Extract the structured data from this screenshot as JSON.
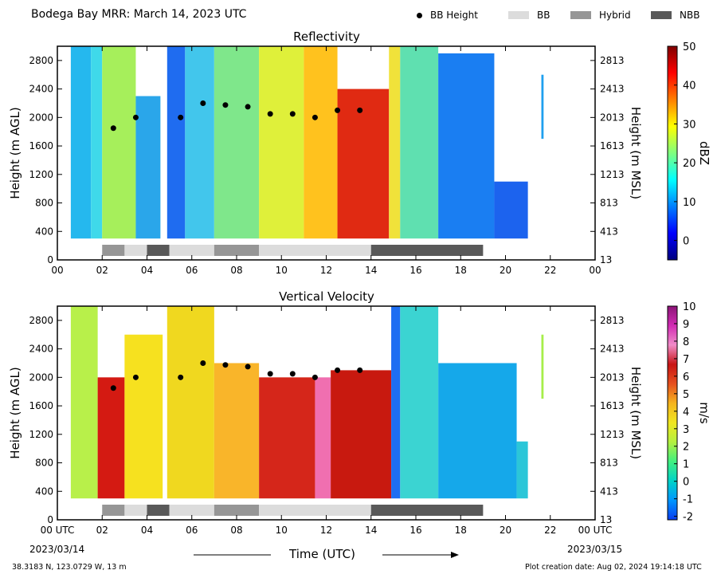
{
  "header": {
    "title": "Bodega Bay MRR:  March 14, 2023 UTC",
    "legend": [
      {
        "name": "BB Height",
        "kind": "dot",
        "color": "#000000"
      },
      {
        "name": "BB",
        "kind": "swatch",
        "color": "#dcdcdc"
      },
      {
        "name": "Hybrid",
        "kind": "swatch",
        "color": "#969696"
      },
      {
        "name": "NBB",
        "kind": "swatch",
        "color": "#595959"
      }
    ]
  },
  "x_axis": {
    "ticks": [
      "00",
      "02",
      "04",
      "06",
      "08",
      "10",
      "12",
      "14",
      "16",
      "18",
      "20",
      "22",
      "00"
    ],
    "bottom_ticks": [
      "00 UTC",
      "02",
      "04",
      "06",
      "08",
      "10",
      "12",
      "14",
      "16",
      "18",
      "20",
      "22",
      "00 UTC"
    ],
    "start_date": "2023/03/14",
    "end_date": "2023/03/15",
    "label": "Time (UTC)"
  },
  "footer": {
    "location": "38.3183 N, 123.0729 W, 13 m",
    "created": "Plot creation date: Aug 02, 2024 19:14:18 UTC"
  },
  "chart_data": [
    {
      "type": "heatmap",
      "title": "Reflectivity",
      "xlabel": "Time (UTC)",
      "ylabel": "Height (m AGL)",
      "y2label": "Height (m MSL)",
      "xlim": [
        0,
        24
      ],
      "ylim": [
        0,
        3000
      ],
      "yticks": [
        0,
        400,
        800,
        1200,
        1600,
        2000,
        2400,
        2800
      ],
      "y2ticks": [
        13,
        413,
        813,
        1213,
        1613,
        2013,
        2413,
        2813
      ],
      "colorbar": {
        "label": "dBZ",
        "min": -5,
        "max": 50,
        "ticks": [
          0,
          10,
          20,
          30,
          40,
          50
        ]
      }
    },
    {
      "type": "heatmap",
      "title": "Vertical Velocity",
      "xlabel": "Time (UTC)",
      "ylabel": "Height (m AGL)",
      "y2label": "Height (m MSL)",
      "xlim": [
        0,
        24
      ],
      "ylim": [
        0,
        3000
      ],
      "yticks": [
        0,
        400,
        800,
        1200,
        1600,
        2000,
        2400,
        2800
      ],
      "y2ticks": [
        13,
        413,
        813,
        1213,
        1613,
        2013,
        2413,
        2813
      ],
      "colorbar": {
        "label": "m/s",
        "min": -2.2,
        "max": 10,
        "ticks": [
          -2,
          -1,
          0,
          1,
          2,
          3,
          4,
          5,
          6,
          7,
          8,
          9,
          10
        ]
      }
    }
  ],
  "bb_heights": [
    {
      "x": 2.5,
      "y": 1850
    },
    {
      "x": 3.5,
      "y": 2000
    },
    {
      "x": 5.5,
      "y": 2000
    },
    {
      "x": 6.5,
      "y": 2200
    },
    {
      "x": 7.5,
      "y": 2175
    },
    {
      "x": 8.5,
      "y": 2150
    },
    {
      "x": 9.5,
      "y": 2050
    },
    {
      "x": 10.5,
      "y": 2050
    },
    {
      "x": 11.5,
      "y": 2000
    },
    {
      "x": 12.5,
      "y": 2100
    },
    {
      "x": 13.5,
      "y": 2100
    }
  ],
  "bb_classes": [
    {
      "start": 2,
      "end": 3,
      "class": "Hybrid"
    },
    {
      "start": 3,
      "end": 4,
      "class": "BB"
    },
    {
      "start": 4,
      "end": 5,
      "class": "NBB"
    },
    {
      "start": 5,
      "end": 7,
      "class": "BB"
    },
    {
      "start": 7,
      "end": 9,
      "class": "Hybrid"
    },
    {
      "start": 9,
      "end": 14,
      "class": "BB"
    },
    {
      "start": 14,
      "end": 19,
      "class": "NBB"
    }
  ],
  "echo_columns": {
    "reflectivity": [
      {
        "start": 0.6,
        "end": 1.5,
        "top": 3000,
        "bottom": 300,
        "color": "#25b8ee"
      },
      {
        "start": 1.5,
        "end": 2.0,
        "top": 3000,
        "bottom": 300,
        "color": "#3fd9ea"
      },
      {
        "start": 2.0,
        "end": 3.5,
        "top": 3000,
        "bottom": 300,
        "color": "#a6ef5b"
      },
      {
        "start": 3.5,
        "end": 4.6,
        "top": 2300,
        "bottom": 300,
        "color": "#2aa6ea"
      },
      {
        "start": 4.9,
        "end": 5.7,
        "top": 3000,
        "bottom": 300,
        "color": "#1f6cf0"
      },
      {
        "start": 5.7,
        "end": 7.0,
        "top": 3000,
        "bottom": 300,
        "color": "#42c6ec"
      },
      {
        "start": 7.0,
        "end": 9.0,
        "top": 3000,
        "bottom": 300,
        "color": "#7fe78b"
      },
      {
        "start": 9.0,
        "end": 11.0,
        "top": 3000,
        "bottom": 300,
        "color": "#dff03a"
      },
      {
        "start": 11.0,
        "end": 12.5,
        "top": 3000,
        "bottom": 300,
        "color": "#ffc21e"
      },
      {
        "start": 12.5,
        "end": 14.8,
        "top": 2400,
        "bottom": 300,
        "color": "#e02a12"
      },
      {
        "start": 14.8,
        "end": 15.3,
        "top": 3000,
        "bottom": 300,
        "color": "#f0e23a"
      },
      {
        "start": 15.3,
        "end": 17.0,
        "top": 3000,
        "bottom": 300,
        "color": "#5fe0b0"
      },
      {
        "start": 17.0,
        "end": 19.5,
        "top": 2900,
        "bottom": 300,
        "color": "#1a7ef2"
      },
      {
        "start": 19.5,
        "end": 21.0,
        "top": 1100,
        "bottom": 300,
        "color": "#1c63ee"
      },
      {
        "start": 21.6,
        "end": 21.7,
        "top": 2600,
        "bottom": 1700,
        "color": "#1fa0ef"
      }
    ],
    "velocity": [
      {
        "start": 0.6,
        "end": 1.8,
        "top": 3000,
        "bottom": 300,
        "color": "#b8f04a"
      },
      {
        "start": 1.8,
        "end": 3.0,
        "top": 2000,
        "bottom": 300,
        "color": "#d41a12"
      },
      {
        "start": 3.0,
        "end": 4.7,
        "top": 2600,
        "bottom": 300,
        "color": "#f6e11f"
      },
      {
        "start": 4.9,
        "end": 7.0,
        "top": 3000,
        "bottom": 300,
        "color": "#f0d81f"
      },
      {
        "start": 7.0,
        "end": 9.0,
        "top": 2200,
        "bottom": 300,
        "color": "#f9b52a"
      },
      {
        "start": 9.0,
        "end": 11.5,
        "top": 2000,
        "bottom": 300,
        "color": "#d5261a"
      },
      {
        "start": 11.5,
        "end": 12.2,
        "top": 2000,
        "bottom": 300,
        "color": "#f06fb0"
      },
      {
        "start": 12.2,
        "end": 14.9,
        "top": 2100,
        "bottom": 300,
        "color": "#c8190f"
      },
      {
        "start": 14.9,
        "end": 15.3,
        "top": 3000,
        "bottom": 300,
        "color": "#1e6ef2"
      },
      {
        "start": 15.3,
        "end": 17.0,
        "top": 3000,
        "bottom": 300,
        "color": "#3bd4d2"
      },
      {
        "start": 17.0,
        "end": 20.5,
        "top": 2200,
        "bottom": 300,
        "color": "#15a8ea"
      },
      {
        "start": 20.5,
        "end": 21.0,
        "top": 1100,
        "bottom": 300,
        "color": "#2bc6d8"
      },
      {
        "start": 21.6,
        "end": 21.7,
        "top": 2600,
        "bottom": 1700,
        "color": "#a6ee4a"
      }
    ]
  }
}
